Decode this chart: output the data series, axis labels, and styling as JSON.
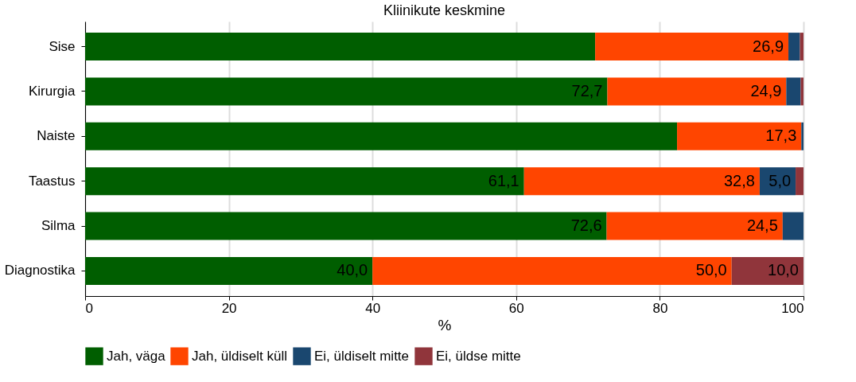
{
  "chart_data": {
    "type": "bar",
    "title": "Kliinikute keskmine",
    "xlabel": "%",
    "orientation": "horizontal",
    "stacked": true,
    "categories": [
      "Sise",
      "Kirurgia",
      "Naiste",
      "Taastus",
      "Silma",
      "Diagnostika"
    ],
    "series": [
      {
        "name": "Jah, väga",
        "color": "#005e00",
        "values": [
          71.0,
          72.7,
          82.4,
          61.1,
          72.6,
          40.0
        ],
        "value_labels": [
          null,
          "72,7",
          null,
          "61,1",
          "72,6",
          "40,0"
        ]
      },
      {
        "name": "Jah, üldiselt küll",
        "color": "#ff4500",
        "values": [
          26.9,
          24.9,
          17.3,
          32.8,
          24.5,
          50.0
        ],
        "value_labels": [
          "26,9",
          "24,9",
          "17,3",
          "32,8",
          "24,5",
          "50,0"
        ]
      },
      {
        "name": "Ei, üldiselt mitte",
        "color": "#1a476f",
        "values": [
          1.6,
          2.0,
          0.3,
          5.0,
          2.9,
          0
        ],
        "value_labels": [
          null,
          null,
          null,
          "5,0",
          null,
          null
        ]
      },
      {
        "name": "Ei, üldse mitte",
        "color": "#90353b",
        "values": [
          0.5,
          0.4,
          0,
          1.1,
          0,
          10.0
        ],
        "value_labels": [
          null,
          null,
          null,
          null,
          null,
          "10,0"
        ]
      }
    ],
    "xlim": [
      0,
      100
    ],
    "xticks": [
      0,
      20,
      40,
      60,
      80,
      100
    ],
    "grid": "x",
    "legend": "bottom"
  }
}
